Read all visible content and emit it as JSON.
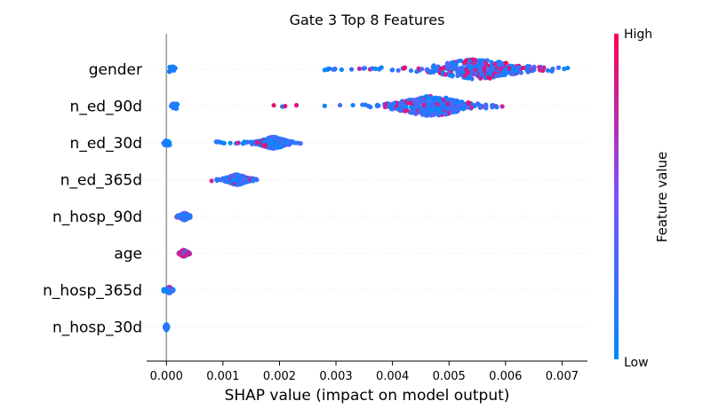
{
  "chart_data": {
    "type": "scatter",
    "title": "Gate 3 Top 8 Features",
    "xlabel": "SHAP value (impact on model output)",
    "ylabel": "",
    "xlim": [
      -0.00035,
      0.00745
    ],
    "xticks": [
      "0.000",
      "0.001",
      "0.002",
      "0.003",
      "0.004",
      "0.005",
      "0.006",
      "0.007"
    ],
    "xtick_values": [
      0,
      0.001,
      0.002,
      0.003,
      0.004,
      0.005,
      0.006,
      0.007
    ],
    "grid": false,
    "colorbar": {
      "label": "Feature value",
      "high_label": "High",
      "low_label": "Low",
      "low_color": "#008afb",
      "mid_color": "#7c52ff",
      "high_color": "#ff0052"
    },
    "features": [
      {
        "name": "gender",
        "center": 0.0055,
        "spread": 0.0005,
        "min": 0.0028,
        "max": 0.0071,
        "outliers": [
          0.0028,
          0.00285,
          0.0031,
          0.0037,
          0.004,
          0.0042
        ],
        "near_zero": 0.0001,
        "mix": 0.2
      },
      {
        "name": "n_ed_90d",
        "center": 0.0047,
        "spread": 0.0004,
        "min": 0.0027,
        "max": 0.006,
        "outliers": [
          0.0019,
          0.00205,
          0.0021,
          0.0023,
          0.0028,
          0.0033
        ],
        "near_zero": 0.00015,
        "mix": 0.15
      },
      {
        "name": "n_ed_30d",
        "center": 0.0019,
        "spread": 0.00015,
        "min": 0.00085,
        "max": 0.0024,
        "outliers": [],
        "near_zero": 0.0,
        "mix": 0.1
      },
      {
        "name": "n_ed_365d",
        "center": 0.00125,
        "spread": 0.00012,
        "min": 0.0006,
        "max": 0.0016,
        "outliers": [],
        "near_zero": 0.0,
        "mix": 0.15
      },
      {
        "name": "n_hosp_90d",
        "center": 0.00032,
        "spread": 5e-05,
        "min": 0.00018,
        "max": 0.00042,
        "outliers": [],
        "near_zero": 0.0,
        "mix": 0.1
      },
      {
        "name": "age",
        "center": 0.00031,
        "spread": 4e-05,
        "min": 0.00022,
        "max": 0.00042,
        "outliers": [],
        "near_zero": 0.0,
        "mix": 0.7
      },
      {
        "name": "n_hosp_365d",
        "center": 5e-05,
        "spread": 3e-05,
        "min": -5e-05,
        "max": 0.00012,
        "outliers": [],
        "near_zero": 0.0,
        "mix": 0.05
      },
      {
        "name": "n_hosp_30d",
        "center": 0.0,
        "spread": 1e-05,
        "min": -3e-05,
        "max": 3e-05,
        "outliers": [],
        "near_zero": 0.0,
        "mix": 0.0
      }
    ]
  }
}
